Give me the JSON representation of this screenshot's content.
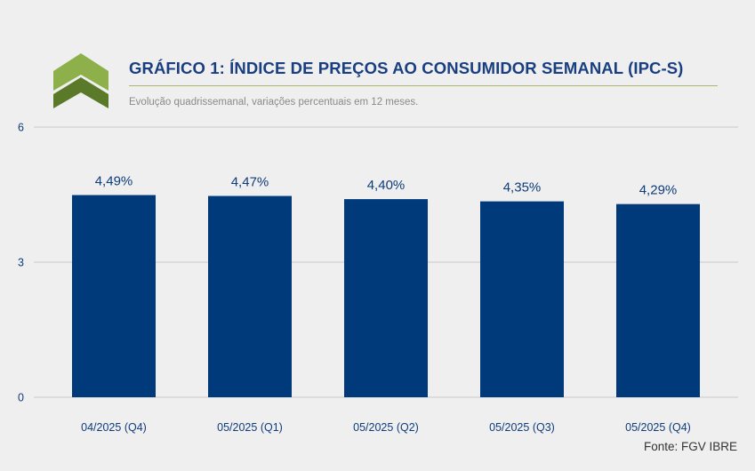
{
  "header": {
    "title": "GRÁFICO 1: ÍNDICE DE PREÇOS AO CONSUMIDOR SEMANAL (IPC-S)",
    "subtitle": "Evolução quadrissemanal, variações percentuais em 12 meses."
  },
  "footer": {
    "source": "Fonte: FGV IBRE"
  },
  "colors": {
    "bar": "#003a7a",
    "label": "#0f3c7a",
    "grid": "#c9c9c9",
    "logo_light": "#8db04a",
    "logo_dark": "#5a7a2a"
  },
  "chart_data": {
    "type": "bar",
    "title": "GRÁFICO 1: ÍNDICE DE PREÇOS AO CONSUMIDOR SEMANAL (IPC-S)",
    "subtitle": "Evolução quadrissemanal, variações percentuais em 12 meses.",
    "categories": [
      "04/2025 (Q4)",
      "05/2025 (Q1)",
      "05/2025 (Q2)",
      "05/2025 (Q3)",
      "05/2025 (Q4)"
    ],
    "values": [
      4.49,
      4.47,
      4.4,
      4.35,
      4.29
    ],
    "data_labels": [
      "4,49%",
      "4,47%",
      "4,40%",
      "4,35%",
      "4,29%"
    ],
    "ylim": [
      0,
      6
    ],
    "yticks": [
      "0",
      "3",
      "6"
    ],
    "ytick_values": [
      0,
      3,
      6
    ],
    "grid": true,
    "xlabel": "",
    "ylabel": ""
  }
}
